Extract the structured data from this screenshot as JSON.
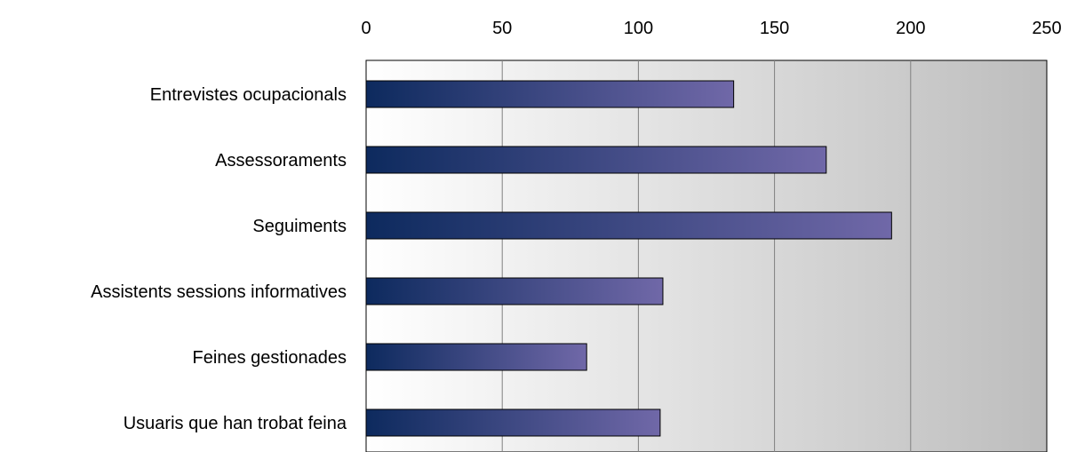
{
  "chart_data": {
    "type": "bar",
    "orientation": "horizontal",
    "categories": [
      "Entrevistes ocupacionals",
      "Assessoraments",
      "Seguiments",
      "Assistents sessions informatives",
      "Feines gestionades",
      "Usuaris que han trobat feina"
    ],
    "values": [
      135,
      169,
      193,
      109,
      81,
      108
    ],
    "xlim": [
      0,
      250
    ],
    "xticks": [
      "0",
      "50",
      "100",
      "150",
      "200",
      "250"
    ],
    "x_axis_position": "top",
    "grid": true,
    "legend": "none",
    "title": "",
    "xlabel": "",
    "ylabel": ""
  },
  "colors": {
    "bar_start": "#0d2a5e",
    "bar_end": "#7068a8",
    "plot_bg_start": "#ffffff",
    "plot_bg_end": "#bdbdbd",
    "gridline": "#808080",
    "bar_border": "#000000"
  }
}
